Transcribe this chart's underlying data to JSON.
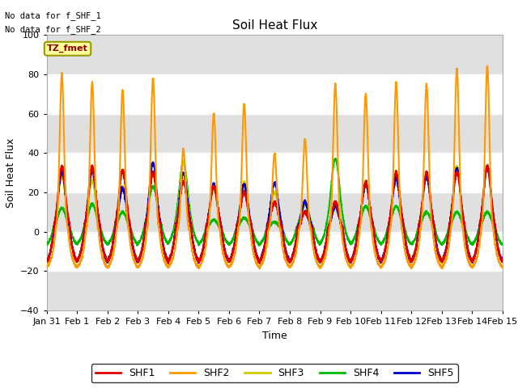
{
  "title": "Soil Heat Flux",
  "xlabel": "Time",
  "ylabel": "Soil Heat Flux",
  "ylim": [
    -40,
    100
  ],
  "yticks": [
    -40,
    -20,
    0,
    20,
    40,
    60,
    80,
    100
  ],
  "fig_bg_color": "#ffffff",
  "plot_bg_color": "#ffffff",
  "band_color": "#e0e0e0",
  "no_data_text": [
    "No data for f_SHF_1",
    "No data for f_SHF_2"
  ],
  "tz_label": "TZ_fmet",
  "legend_entries": [
    "SHF1",
    "SHF2",
    "SHF3",
    "SHF4",
    "SHF5"
  ],
  "line_colors": [
    "#dd0000",
    "#ff9900",
    "#cccc00",
    "#00bb00",
    "#0000cc"
  ],
  "shf2_peaks": [
    80,
    76,
    72,
    78,
    42,
    60,
    65,
    40,
    47,
    75,
    70,
    76,
    75,
    83,
    84
  ],
  "shf1_peaks": [
    33,
    33,
    31,
    30,
    25,
    23,
    20,
    15,
    10,
    15,
    25,
    30,
    30,
    30,
    33
  ],
  "shf3_peaks": [
    28,
    26,
    23,
    29,
    35,
    22,
    25,
    20,
    15,
    13,
    25,
    30,
    29,
    33,
    33
  ],
  "shf4_peaks": [
    12,
    14,
    10,
    23,
    35,
    6,
    7,
    5,
    14,
    37,
    13,
    13,
    10,
    10,
    10
  ],
  "shf5_peaks": [
    30,
    31,
    22,
    35,
    30,
    24,
    24,
    25,
    15,
    13,
    24,
    27,
    28,
    32,
    33
  ],
  "xtick_labels": [
    "Jan 31",
    "Feb 1",
    "Feb 2",
    "Feb 3",
    "Feb 4",
    "Feb 5",
    "Feb 6",
    "Feb 7",
    "Feb 8",
    "Feb 9",
    "Feb 10",
    "Feb 11",
    "Feb 12",
    "Feb 13",
    "Feb 14",
    "Feb 15"
  ]
}
